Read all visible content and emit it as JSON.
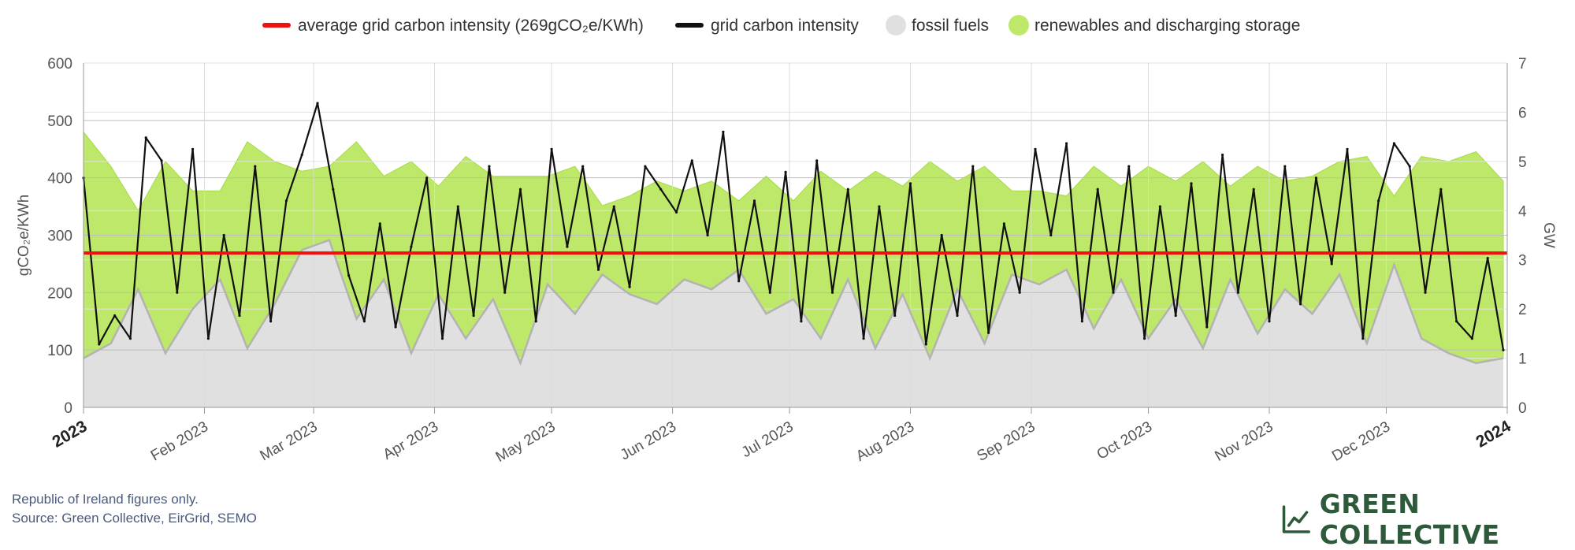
{
  "legend": [
    {
      "key": "average",
      "label": "average grid carbon intensity (269gCO₂e/KWh)",
      "color": "#ee1111",
      "shape": "line"
    },
    {
      "key": "intensity",
      "label": "grid carbon intensity",
      "color": "#111111",
      "shape": "line"
    },
    {
      "key": "fossil",
      "label": "fossil fuels",
      "color": "#e0e0e0",
      "shape": "dot"
    },
    {
      "key": "renewables",
      "label": "renewables and discharging storage",
      "color": "#bde86a",
      "shape": "dot"
    }
  ],
  "footer": {
    "line1": "Republic of Ireland figures only.",
    "line2": "Source: Green Collective, EirGrid, SEMO"
  },
  "brand": {
    "name": "GREEN COLLECTIVE",
    "icon": "trend-chart-icon",
    "color": "#2e5a3c"
  },
  "chart_data": {
    "type": "line",
    "xlabel": "",
    "ylabel": "gCO₂e/KWh",
    "y2label": "GW",
    "xlim": [
      "2023-01-01",
      "2024-01-01"
    ],
    "ylim": [
      0,
      600
    ],
    "y2lim": [
      0,
      7
    ],
    "y_ticks": [
      "0",
      "100",
      "200",
      "300",
      "400",
      "500",
      "600"
    ],
    "y2_ticks": [
      "0",
      "1",
      "2",
      "3",
      "4",
      "5",
      "6",
      "7"
    ],
    "x_ticks": [
      {
        "date": "2023-01-01",
        "label": "2023",
        "bold": true
      },
      {
        "date": "2023-02-01",
        "label": "Feb 2023",
        "bold": false
      },
      {
        "date": "2023-03-01",
        "label": "Mar 2023",
        "bold": false
      },
      {
        "date": "2023-04-01",
        "label": "Apr 2023",
        "bold": false
      },
      {
        "date": "2023-05-01",
        "label": "May 2023",
        "bold": false
      },
      {
        "date": "2023-06-01",
        "label": "Jun 2023",
        "bold": false
      },
      {
        "date": "2023-07-01",
        "label": "Jul 2023",
        "bold": false
      },
      {
        "date": "2023-08-01",
        "label": "Aug 2023",
        "bold": false
      },
      {
        "date": "2023-09-01",
        "label": "Sep 2023",
        "bold": false
      },
      {
        "date": "2023-10-01",
        "label": "Oct 2023",
        "bold": false
      },
      {
        "date": "2023-11-01",
        "label": "Nov 2023",
        "bold": false
      },
      {
        "date": "2023-12-01",
        "label": "Dec 2023",
        "bold": false
      },
      {
        "date": "2024-01-01",
        "label": "2024",
        "bold": true
      }
    ],
    "average": 269,
    "grid": true,
    "legend_position": "top",
    "series": [
      {
        "name": "grid carbon intensity",
        "axis": "left",
        "color": "#111111",
        "dates": [
          "2023-01-01",
          "2023-01-05",
          "2023-01-09",
          "2023-01-13",
          "2023-01-17",
          "2023-01-21",
          "2023-01-25",
          "2023-01-29",
          "2023-02-02",
          "2023-02-06",
          "2023-02-10",
          "2023-02-14",
          "2023-02-18",
          "2023-02-22",
          "2023-02-26",
          "2023-03-02",
          "2023-03-06",
          "2023-03-10",
          "2023-03-14",
          "2023-03-18",
          "2023-03-22",
          "2023-03-26",
          "2023-03-30",
          "2023-04-03",
          "2023-04-07",
          "2023-04-11",
          "2023-04-15",
          "2023-04-19",
          "2023-04-23",
          "2023-04-27",
          "2023-05-01",
          "2023-05-05",
          "2023-05-09",
          "2023-05-13",
          "2023-05-17",
          "2023-05-21",
          "2023-05-25",
          "2023-05-29",
          "2023-06-02",
          "2023-06-06",
          "2023-06-10",
          "2023-06-14",
          "2023-06-18",
          "2023-06-22",
          "2023-06-26",
          "2023-06-30",
          "2023-07-04",
          "2023-07-08",
          "2023-07-12",
          "2023-07-16",
          "2023-07-20",
          "2023-07-24",
          "2023-07-28",
          "2023-08-01",
          "2023-08-05",
          "2023-08-09",
          "2023-08-13",
          "2023-08-17",
          "2023-08-21",
          "2023-08-25",
          "2023-08-29",
          "2023-09-02",
          "2023-09-06",
          "2023-09-10",
          "2023-09-14",
          "2023-09-18",
          "2023-09-22",
          "2023-09-26",
          "2023-09-30",
          "2023-10-04",
          "2023-10-08",
          "2023-10-12",
          "2023-10-16",
          "2023-10-20",
          "2023-10-24",
          "2023-10-28",
          "2023-11-01",
          "2023-11-05",
          "2023-11-09",
          "2023-11-13",
          "2023-11-17",
          "2023-11-21",
          "2023-11-25",
          "2023-11-29",
          "2023-12-03",
          "2023-12-07",
          "2023-12-11",
          "2023-12-15",
          "2023-12-19",
          "2023-12-23",
          "2023-12-27",
          "2023-12-31"
        ],
        "values": [
          400,
          110,
          160,
          120,
          470,
          430,
          200,
          450,
          120,
          300,
          160,
          420,
          150,
          360,
          440,
          530,
          380,
          230,
          150,
          320,
          140,
          280,
          400,
          120,
          350,
          160,
          420,
          200,
          380,
          150,
          450,
          280,
          420,
          240,
          350,
          210,
          420,
          380,
          340,
          430,
          300,
          480,
          220,
          360,
          200,
          410,
          150,
          430,
          200,
          380,
          120,
          350,
          160,
          390,
          110,
          300,
          160,
          420,
          130,
          320,
          200,
          450,
          300,
          460,
          150,
          380,
          200,
          420,
          120,
          350,
          160,
          390,
          140,
          440,
          200,
          380,
          150,
          420,
          180,
          400,
          250,
          450,
          120,
          360,
          460,
          420,
          200,
          380,
          150,
          120,
          260,
          100
        ]
      },
      {
        "name": "fossil fuels",
        "axis": "right",
        "color": "#b3b3b3",
        "dates": [
          "2023-01-01",
          "2023-01-08",
          "2023-01-15",
          "2023-01-22",
          "2023-01-29",
          "2023-02-05",
          "2023-02-12",
          "2023-02-19",
          "2023-02-26",
          "2023-03-05",
          "2023-03-12",
          "2023-03-19",
          "2023-03-26",
          "2023-04-02",
          "2023-04-09",
          "2023-04-16",
          "2023-04-23",
          "2023-04-30",
          "2023-05-07",
          "2023-05-14",
          "2023-05-21",
          "2023-05-28",
          "2023-06-04",
          "2023-06-11",
          "2023-06-18",
          "2023-06-25",
          "2023-07-02",
          "2023-07-09",
          "2023-07-16",
          "2023-07-23",
          "2023-07-30",
          "2023-08-06",
          "2023-08-13",
          "2023-08-20",
          "2023-08-27",
          "2023-09-03",
          "2023-09-10",
          "2023-09-17",
          "2023-09-24",
          "2023-10-01",
          "2023-10-08",
          "2023-10-15",
          "2023-10-22",
          "2023-10-29",
          "2023-11-05",
          "2023-11-12",
          "2023-11-19",
          "2023-11-26",
          "2023-12-03",
          "2023-12-10",
          "2023-12-17",
          "2023-12-24",
          "2023-12-31"
        ],
        "values": [
          1.0,
          1.3,
          2.4,
          1.1,
          2.0,
          2.6,
          1.2,
          2.1,
          3.2,
          3.4,
          1.8,
          2.6,
          1.1,
          2.3,
          1.4,
          2.2,
          0.9,
          2.5,
          1.9,
          2.7,
          2.3,
          2.1,
          2.6,
          2.4,
          2.8,
          1.9,
          2.2,
          1.4,
          2.6,
          1.2,
          2.3,
          1.0,
          2.4,
          1.3,
          2.7,
          2.5,
          2.8,
          1.6,
          2.6,
          1.4,
          2.2,
          1.2,
          2.6,
          1.5,
          2.4,
          1.9,
          2.7,
          1.3,
          2.9,
          1.4,
          1.1,
          0.9,
          1.0
        ]
      },
      {
        "name": "renewables and discharging storage",
        "axis": "right",
        "color": "#bde86a",
        "dates": [
          "2023-01-01",
          "2023-01-08",
          "2023-01-15",
          "2023-01-22",
          "2023-01-29",
          "2023-02-05",
          "2023-02-12",
          "2023-02-19",
          "2023-02-26",
          "2023-03-05",
          "2023-03-12",
          "2023-03-19",
          "2023-03-26",
          "2023-04-02",
          "2023-04-09",
          "2023-04-16",
          "2023-04-23",
          "2023-04-30",
          "2023-05-07",
          "2023-05-14",
          "2023-05-21",
          "2023-05-28",
          "2023-06-04",
          "2023-06-11",
          "2023-06-18",
          "2023-06-25",
          "2023-07-02",
          "2023-07-09",
          "2023-07-16",
          "2023-07-23",
          "2023-07-30",
          "2023-08-06",
          "2023-08-13",
          "2023-08-20",
          "2023-08-27",
          "2023-09-03",
          "2023-09-10",
          "2023-09-17",
          "2023-09-24",
          "2023-10-01",
          "2023-10-08",
          "2023-10-15",
          "2023-10-22",
          "2023-10-29",
          "2023-11-05",
          "2023-11-12",
          "2023-11-19",
          "2023-11-26",
          "2023-12-03",
          "2023-12-10",
          "2023-12-17",
          "2023-12-24",
          "2023-12-31"
        ],
        "values": [
          4.6,
          3.6,
          1.6,
          3.9,
          2.4,
          1.8,
          4.2,
          2.9,
          1.6,
          1.5,
          3.6,
          2.1,
          3.9,
          2.2,
          3.7,
          2.5,
          3.8,
          2.2,
          3.0,
          1.4,
          2.0,
          2.5,
          1.8,
          2.2,
          1.4,
          2.8,
          2.0,
          3.4,
          1.8,
          3.6,
          2.2,
          4.0,
          2.2,
          3.6,
          1.7,
          1.9,
          1.5,
          3.3,
          1.9,
          3.5,
          2.4,
          3.8,
          1.9,
          3.4,
          2.2,
          2.8,
          2.3,
          3.8,
          1.4,
          3.7,
          3.9,
          4.3,
          3.6
        ]
      }
    ]
  }
}
